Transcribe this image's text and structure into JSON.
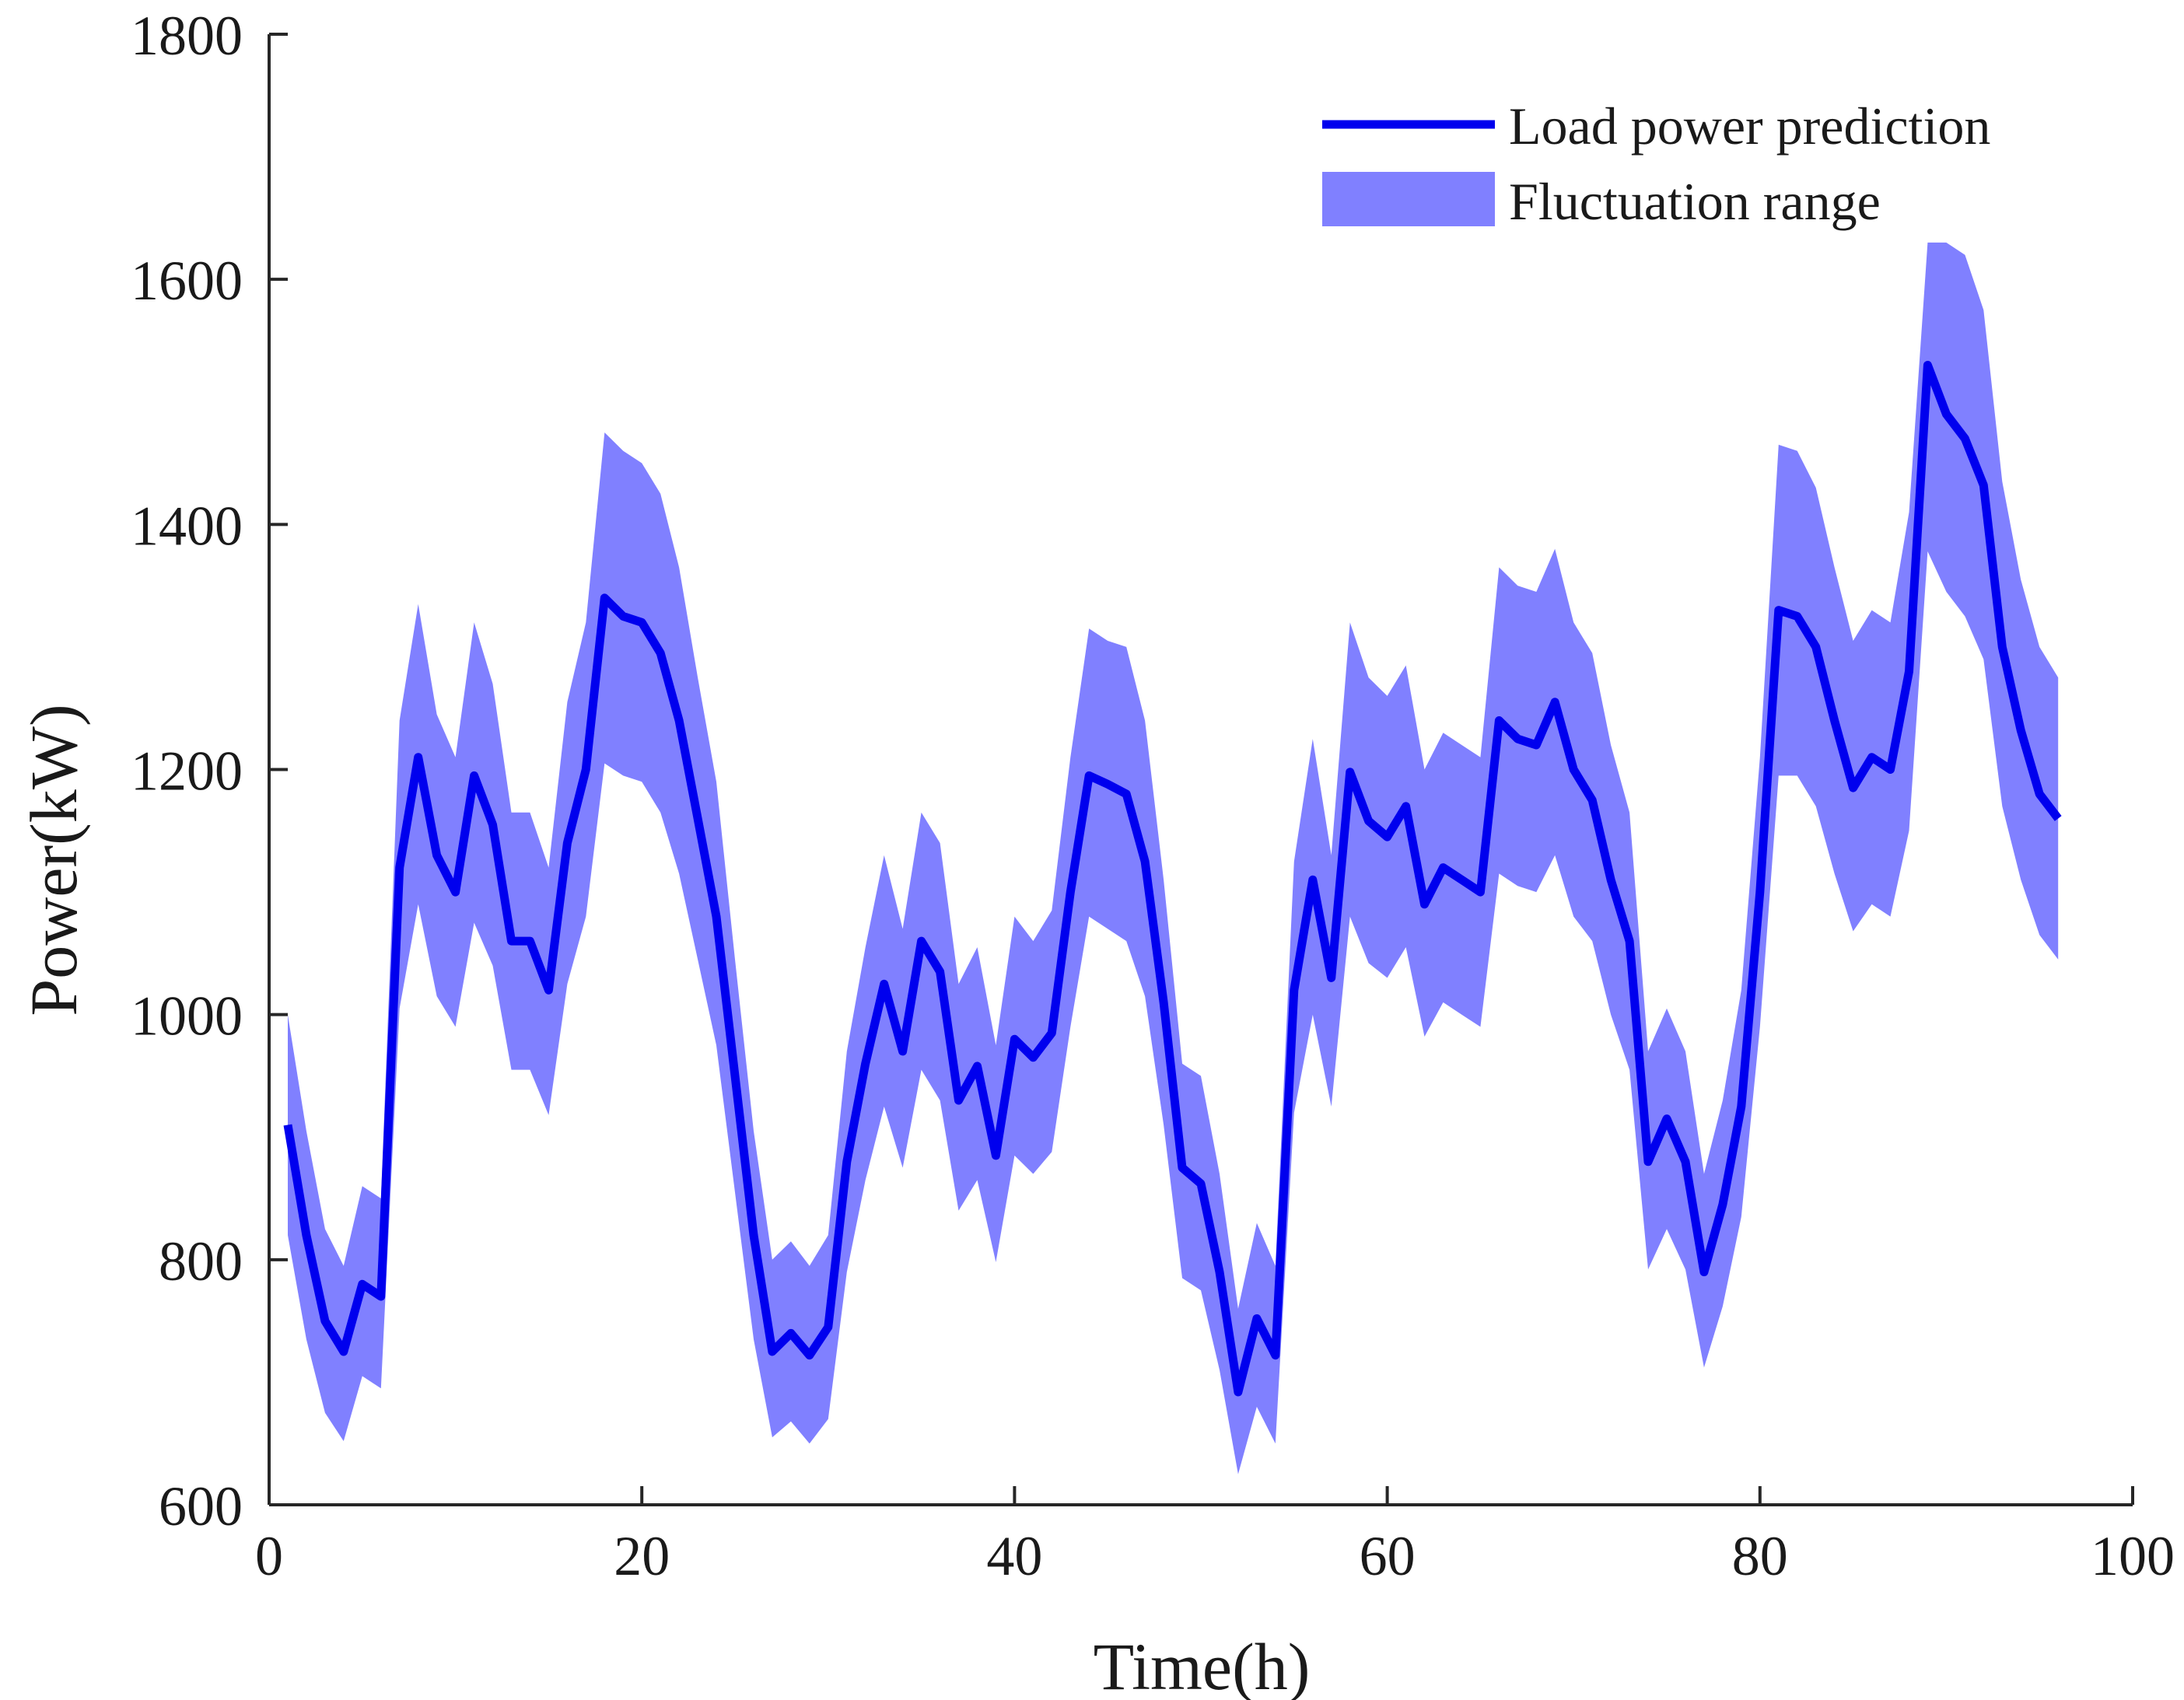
{
  "chart_data": {
    "type": "line",
    "title": "",
    "xlabel": "Time(h)",
    "ylabel": "Power(kW)",
    "xlim": [
      0,
      100
    ],
    "ylim": [
      600,
      1800
    ],
    "xticks": [
      0,
      20,
      40,
      60,
      80,
      100
    ],
    "yticks": [
      600,
      800,
      1000,
      1200,
      1400,
      1600,
      1800
    ],
    "grid": false,
    "legend_position": "top-right",
    "series": [
      {
        "name": "Load power prediction",
        "style": "line",
        "color": "#0000ee",
        "x": [
          1,
          2,
          3,
          4,
          5,
          6,
          7,
          8,
          9,
          10,
          11,
          12,
          13,
          14,
          15,
          16,
          17,
          18,
          19,
          20,
          21,
          22,
          23,
          24,
          25,
          26,
          27,
          28,
          29,
          30,
          31,
          32,
          33,
          34,
          35,
          36,
          37,
          38,
          39,
          40,
          41,
          42,
          43,
          44,
          45,
          46,
          47,
          48,
          49,
          50,
          51,
          52,
          53,
          54,
          55,
          56,
          57,
          58,
          59,
          60,
          61,
          62,
          63,
          64,
          65,
          66,
          67,
          68,
          69,
          70,
          71,
          72,
          73,
          74,
          75,
          76,
          77,
          78,
          79,
          80,
          81,
          82,
          83,
          84,
          85,
          86,
          87,
          88,
          89,
          90,
          91,
          92,
          93,
          94,
          95,
          96
        ],
        "values": [
          910,
          820,
          750,
          725,
          780,
          770,
          1120,
          1210,
          1130,
          1100,
          1195,
          1155,
          1060,
          1060,
          1020,
          1140,
          1200,
          1340,
          1325,
          1320,
          1295,
          1240,
          1160,
          1080,
          950,
          820,
          725,
          740,
          722,
          745,
          880,
          960,
          1025,
          970,
          1060,
          1035,
          930,
          958,
          885,
          980,
          965,
          985,
          1100,
          1195,
          1188,
          1180,
          1125,
          1010,
          875,
          862,
          790,
          692,
          752,
          722,
          1020,
          1110,
          1030,
          1198,
          1158,
          1145,
          1170,
          1090,
          1120,
          1110,
          1100,
          1240,
          1225,
          1220,
          1255,
          1200,
          1175,
          1110,
          1060,
          880,
          915,
          880,
          790,
          845,
          925,
          1100,
          1330,
          1325,
          1300,
          1240,
          1185,
          1210,
          1200,
          1280,
          1530,
          1490,
          1470,
          1432,
          1300,
          1232,
          1180,
          1160
        ]
      },
      {
        "name": "Fluctuation range",
        "style": "band",
        "color": "#8080ff",
        "x": [
          1,
          2,
          3,
          4,
          5,
          6,
          7,
          8,
          9,
          10,
          11,
          12,
          13,
          14,
          15,
          16,
          17,
          18,
          19,
          20,
          21,
          22,
          23,
          24,
          25,
          26,
          27,
          28,
          29,
          30,
          31,
          32,
          33,
          34,
          35,
          36,
          37,
          38,
          39,
          40,
          41,
          42,
          43,
          44,
          45,
          46,
          47,
          48,
          49,
          50,
          51,
          52,
          53,
          54,
          55,
          56,
          57,
          58,
          59,
          60,
          61,
          62,
          63,
          64,
          65,
          66,
          67,
          68,
          69,
          70,
          71,
          72,
          73,
          74,
          75,
          76,
          77,
          78,
          79,
          80,
          81,
          82,
          83,
          84,
          85,
          86,
          87,
          88,
          89,
          90,
          91,
          92,
          93,
          94,
          95,
          96
        ],
        "upper": [
          1000,
          905,
          825,
          795,
          860,
          850,
          1240,
          1335,
          1245,
          1210,
          1320,
          1270,
          1165,
          1165,
          1120,
          1255,
          1320,
          1475,
          1460,
          1450,
          1425,
          1365,
          1275,
          1190,
          1045,
          905,
          800,
          815,
          795,
          820,
          970,
          1055,
          1130,
          1070,
          1165,
          1140,
          1025,
          1055,
          975,
          1080,
          1060,
          1085,
          1210,
          1315,
          1305,
          1300,
          1240,
          1110,
          960,
          950,
          870,
          760,
          830,
          795,
          1125,
          1225,
          1130,
          1320,
          1275,
          1260,
          1285,
          1200,
          1230,
          1220,
          1210,
          1365,
          1350,
          1345,
          1380,
          1320,
          1295,
          1220,
          1165,
          970,
          1005,
          970,
          870,
          930,
          1020,
          1210,
          1465,
          1460,
          1430,
          1365,
          1305,
          1330,
          1320,
          1410,
          1630,
          1630,
          1620,
          1575,
          1435,
          1355,
          1300,
          1275
        ],
        "lower": [
          820,
          735,
          675,
          652,
          705,
          695,
          1005,
          1090,
          1015,
          990,
          1075,
          1040,
          955,
          955,
          918,
          1025,
          1080,
          1205,
          1195,
          1190,
          1165,
          1115,
          1045,
          975,
          855,
          735,
          655,
          668,
          650,
          670,
          790,
          865,
          925,
          875,
          955,
          930,
          840,
          865,
          798,
          885,
          870,
          888,
          990,
          1080,
          1070,
          1060,
          1015,
          910,
          785,
          775,
          710,
          625,
          680,
          650,
          920,
          1000,
          925,
          1080,
          1042,
          1030,
          1055,
          982,
          1010,
          1000,
          990,
          1115,
          1105,
          1100,
          1130,
          1080,
          1060,
          1000,
          955,
          792,
          825,
          792,
          712,
          762,
          835,
          990,
          1195,
          1195,
          1170,
          1115,
          1068,
          1090,
          1080,
          1150,
          1378,
          1345,
          1325,
          1290,
          1170,
          1110,
          1065,
          1045
        ]
      }
    ],
    "legend": {
      "entries": [
        {
          "label": "Load power prediction",
          "symbol": "line",
          "color": "#0000ee"
        },
        {
          "label": "Fluctuation range",
          "symbol": "patch",
          "color": "#8080ff"
        }
      ]
    }
  }
}
